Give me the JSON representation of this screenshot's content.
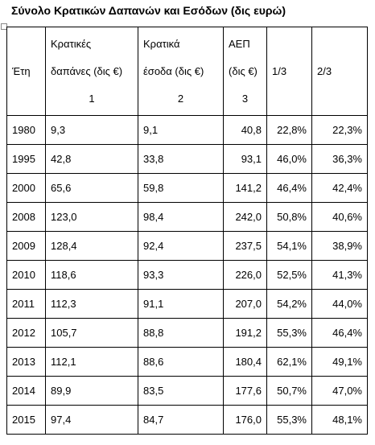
{
  "title": "Σύνολο Κρατικών Δαπανών και Εσόδων (δις ευρώ)",
  "table": {
    "header": [
      [
        "Έτη"
      ],
      [
        "Κρατικές",
        "δαπάνες (δις €)",
        "1"
      ],
      [
        "Κρατικά",
        "έσοδα (δις €)",
        "2"
      ],
      [
        "ΑΕΠ",
        "(δις €)",
        "3"
      ],
      [
        "1/3"
      ],
      [
        "2/3"
      ]
    ],
    "rows": [
      [
        "1980",
        "9,3",
        "9,1",
        "40,8",
        "22,8%",
        "22,3%"
      ],
      [
        "1995",
        "42,8",
        "33,8",
        "93,1",
        "46,0%",
        "36,3%"
      ],
      [
        "2000",
        "65,6",
        "59,8",
        "141,2",
        "46,4%",
        "42,4%"
      ],
      [
        "2008",
        "123,0",
        "98,4",
        "242,0",
        "50,8%",
        "40,6%"
      ],
      [
        "2009",
        "128,4",
        "92,4",
        "237,5",
        "54,1%",
        "38,9%"
      ],
      [
        "2010",
        "118,6",
        "93,3",
        "226,0",
        "52,5%",
        "41,3%"
      ],
      [
        "2011",
        "112,3",
        "91,1",
        "207,0",
        "54,2%",
        "44,0%"
      ],
      [
        "2012",
        "105,7",
        "88,8",
        "191,2",
        "55,3%",
        "46,4%"
      ],
      [
        "2013",
        "112,1",
        "88,6",
        "180,4",
        "62,1%",
        "49,1%"
      ],
      [
        "2014",
        "89,9",
        "83,5",
        "177,6",
        "50,7%",
        "47,0%"
      ],
      [
        "2015",
        "97,4",
        "84,7",
        "176,0",
        "55,3%",
        "48,1%"
      ]
    ]
  }
}
